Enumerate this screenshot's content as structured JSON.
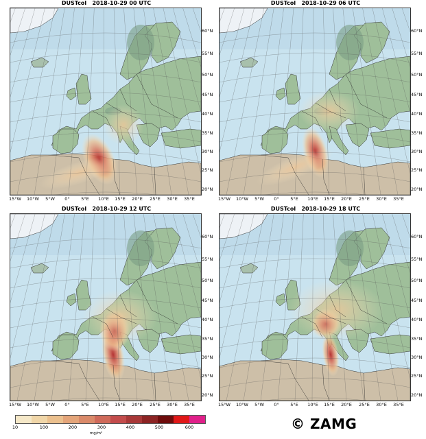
{
  "panels": [
    {
      "title": "DUSTcol   2018-10-29 00 UTC"
    },
    {
      "title": "DUSTcol   2018-10-29 06 UTC"
    },
    {
      "title": "DUSTcol   2018-10-29 12 UTC"
    },
    {
      "title": "DUSTcol   2018-10-29 18 UTC"
    }
  ],
  "lat_labels": [
    "60°N",
    "55°N",
    "50°N",
    "45°N",
    "40°N",
    "35°N",
    "30°N",
    "25°N",
    "20°N"
  ],
  "lon_labels": [
    "15°W",
    "10°W",
    "5°W",
    "0°",
    "5°E",
    "10°E",
    "15°E",
    "20°E",
    "25°E",
    "30°E",
    "35°E"
  ],
  "colorbar": {
    "tick_labels": [
      "10",
      "100",
      "200",
      "300",
      "400",
      "500",
      "600"
    ],
    "unit": "mg/m²",
    "colors": [
      "#f5e8c8",
      "#f0d6a8",
      "#ebc08e",
      "#e4a57a",
      "#da8a6a",
      "#cf6a5a",
      "#c34c4c",
      "#a83838",
      "#8c2424",
      "#6e0c0c",
      "#e01818",
      "#e0208a"
    ]
  },
  "copyright": "© ZAMG",
  "colors": {
    "sea": "#c9e3ef",
    "land": "#9fbf9a",
    "desert": "#cdbfa8",
    "ice": "#eef2f6"
  }
}
